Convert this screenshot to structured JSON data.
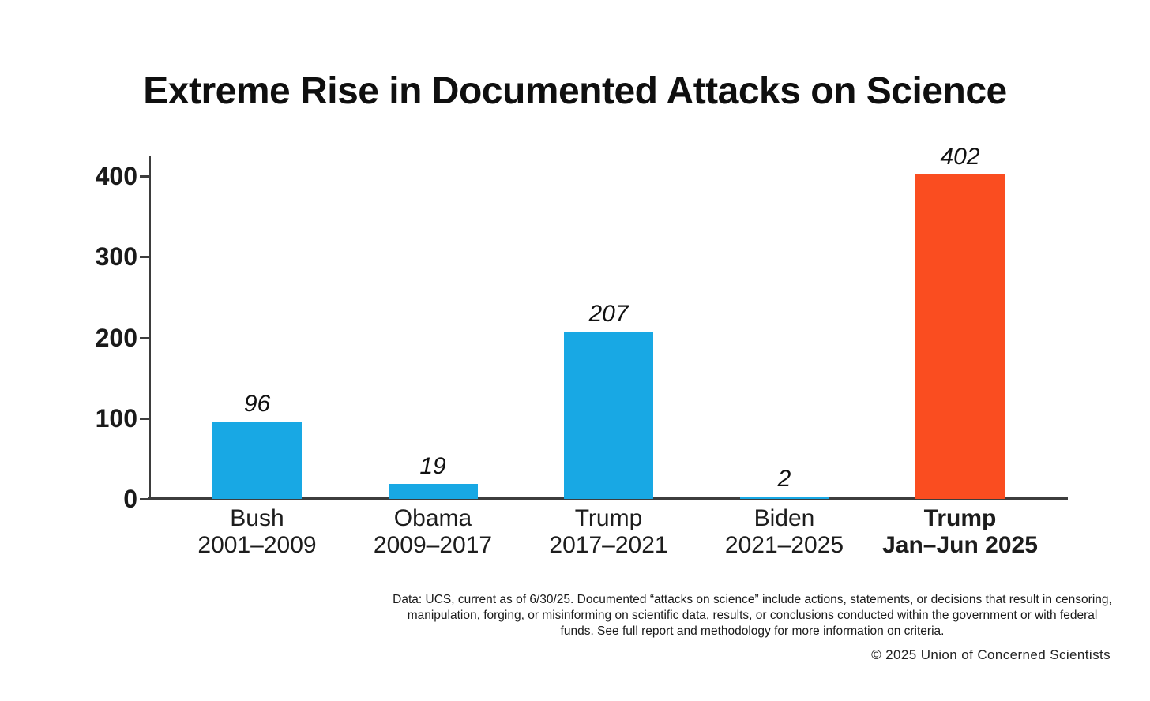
{
  "title": "Extreme Rise in Documented Attacks on Science",
  "chart_data": {
    "type": "bar",
    "title": "Extreme Rise in Documented Attacks on Science",
    "categories": [
      "Bush 2001–2009",
      "Obama 2009–2017",
      "Trump 2017–2021",
      "Biden 2021–2025",
      "Trump Jan–Jun 2025"
    ],
    "values": [
      96,
      19,
      207,
      2,
      402
    ],
    "bars": [
      {
        "label_line1": "Bush",
        "label_line2": "2001–2009",
        "value": 96,
        "value_label": "96",
        "color": "#18a8e4",
        "bold_label": false
      },
      {
        "label_line1": "Obama",
        "label_line2": "2009–2017",
        "value": 19,
        "value_label": "19",
        "color": "#18a8e4",
        "bold_label": false
      },
      {
        "label_line1": "Trump",
        "label_line2": "2017–2021",
        "value": 207,
        "value_label": "207",
        "color": "#18a8e4",
        "bold_label": false
      },
      {
        "label_line1": "Biden",
        "label_line2": "2021–2025",
        "value": 2,
        "value_label": "2",
        "color": "#18a8e4",
        "bold_label": false
      },
      {
        "label_line1": "Trump",
        "label_line2": "Jan–Jun 2025",
        "value": 402,
        "value_label": "402",
        "color": "#fa4d20",
        "bold_label": true
      }
    ],
    "xlabel": "",
    "ylabel": "",
    "ylim": [
      0,
      400
    ],
    "yticks": [
      0,
      100,
      200,
      300,
      400
    ],
    "ytick_labels": [
      "0",
      "100",
      "200",
      "300",
      "400"
    ],
    "grid": false,
    "legend": "none",
    "value_label_style": "italic"
  },
  "colors": {
    "bar_blue": "#18a8e4",
    "bar_orange": "#fa4d20",
    "axis_line": "#3d3d3d",
    "text": "#1b1b1b"
  },
  "footnote": "Data: UCS, current as of 6/30/25. Documented “attacks on science” include actions, statements, or decisions that result in censoring, manipulation, forging, or misinforming on scientific data, results, or conclusions conducted within the government or with federal funds. See full report and methodology for more information on criteria.",
  "copyright": "© 2025 Union of Concerned Scientists"
}
